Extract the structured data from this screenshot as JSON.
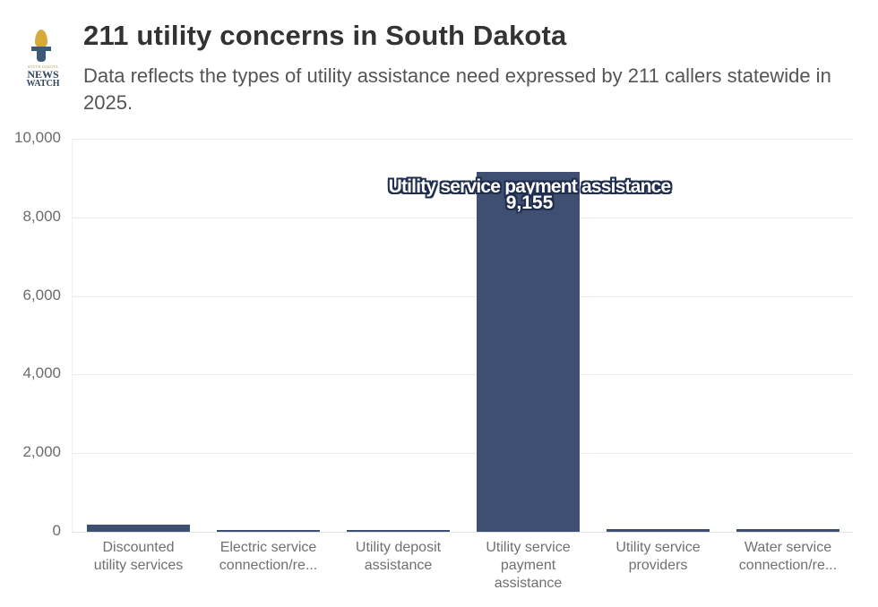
{
  "header": {
    "logo": {
      "small_text": "SOUTH DAKOTA",
      "line1": "NEWS",
      "line2": "WATCH",
      "icon": "torch-icon",
      "colors": {
        "flame": "#d6a93a",
        "text": "#2f4560"
      }
    },
    "title": "211 utility concerns in South Dakota",
    "subtitle": "Data reflects the types of utility assistance need expressed by 211 callers statewide in 2025."
  },
  "y_axis": {
    "ticks": [
      "10,000",
      "8,000",
      "6,000",
      "4,000",
      "2,000",
      "0"
    ]
  },
  "x_axis": {
    "labels": [
      [
        "Discounted",
        "utility services"
      ],
      [
        "Electric service",
        "connection/re..."
      ],
      [
        "Utility deposit",
        "assistance"
      ],
      [
        "Utility service",
        "payment",
        "assistance"
      ],
      [
        "Utility service",
        "providers"
      ],
      [
        "Water service",
        "connection/re..."
      ]
    ]
  },
  "annotation": {
    "label": "Utility service payment assistance",
    "value": "9,155"
  },
  "colors": {
    "bar": "#3f4f72",
    "annotation_outline": "#1f2d4f"
  },
  "chart_data": {
    "type": "bar",
    "title": "211 utility concerns in South Dakota",
    "subtitle": "Data reflects the types of utility assistance need expressed by 211 callers statewide in 2025.",
    "categories": [
      "Discounted utility services",
      "Electric service connection/re...",
      "Utility deposit assistance",
      "Utility service payment assistance",
      "Utility service providers",
      "Water service connection/re..."
    ],
    "values": [
      180,
      10,
      10,
      9155,
      60,
      70
    ],
    "xlabel": "",
    "ylabel": "",
    "ylim": [
      0,
      10000
    ],
    "yticks": [
      0,
      2000,
      4000,
      6000,
      8000,
      10000
    ],
    "grid": true,
    "legend": null,
    "annotations": [
      {
        "category": "Utility service payment assistance",
        "text": "Utility service payment assistance",
        "value": "9,155"
      }
    ]
  }
}
